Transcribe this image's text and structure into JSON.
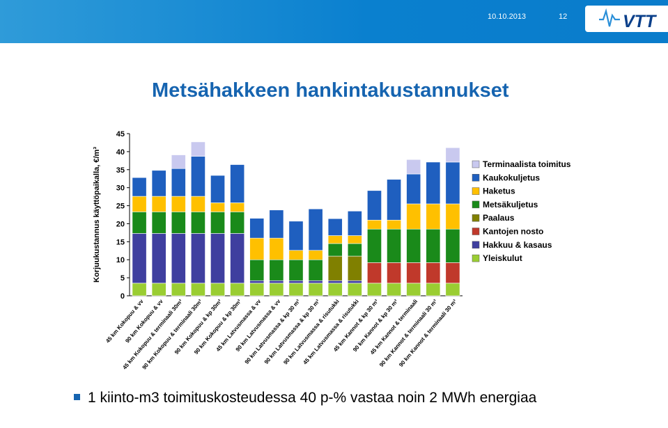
{
  "header": {
    "date": "10.10.2013",
    "page_number": "12",
    "logo_text": "VTT",
    "bg_color": "#0a80cf"
  },
  "title": "Metsähakkeen hankintakustannukset",
  "footnote": {
    "bullet_icon": "square-bullet-icon",
    "text": "1 kiinto-m3 toimituskosteudessa 40 p-% vastaa noin 2 MWh energiaa"
  },
  "chart_data": {
    "type": "bar",
    "stacked": true,
    "ylabel": "Korjuukustannus käyttöpaikalla, €/m³",
    "ylim": [
      0,
      45
    ],
    "yticks": [
      0,
      5,
      10,
      15,
      20,
      25,
      30,
      35,
      40,
      45
    ],
    "grid": false,
    "legend_position": "right",
    "categories": [
      "45 km Kokopuu & vv",
      "90 km Kokopuu & vv",
      "45 km Kokopuu & terminaali 30m³",
      "90 km Kokopuu & terminaali 30m³",
      "90 km Kokopuu & kp 30m³",
      "90 km Kokopuu & kp 30m³",
      "45 km Latvusmassa & vv",
      "90 km Latvusmassa & vv",
      "90 km Latvusmassa & kp 30 m³",
      "90 km Latvusmassa & kp 30 m³",
      "90 km Latvusmassa & risutukki",
      "45 km Latvusmassa & risutukki",
      "45 km Kannot & kp 30 m³",
      "90 km Kannot & kp 30 m³",
      "45 km Kannot & terminaali",
      "90 km Kannot & terminaali 30 m³",
      "90 km Kannot & terminaali 30 m³"
    ],
    "series": [
      {
        "name": "Yleiskulut",
        "color": "#9acd32",
        "values": [
          3.5,
          3.5,
          3.5,
          3.5,
          3.5,
          3.5,
          3.5,
          3.5,
          3.5,
          3.5,
          3.5,
          3.5,
          3.5,
          3.5,
          3.5,
          3.5,
          3.5
        ]
      },
      {
        "name": "Hakkuu & kasaus",
        "color": "#3f3f9f",
        "values": [
          13.8,
          13.8,
          13.8,
          13.8,
          13.8,
          13.8,
          0.7,
          0.7,
          0.7,
          0.7,
          0.7,
          0.7,
          0,
          0,
          0,
          0,
          0
        ]
      },
      {
        "name": "Kantojen nosto",
        "color": "#c0392b",
        "values": [
          0,
          0,
          0,
          0,
          0,
          0,
          0,
          0,
          0,
          0,
          0,
          0,
          5.7,
          5.7,
          5.7,
          5.7,
          5.7
        ]
      },
      {
        "name": "Paalaus",
        "color": "#808000",
        "values": [
          0,
          0,
          0,
          0,
          0,
          0,
          0,
          0,
          0,
          0,
          6.8,
          6.8,
          0,
          0,
          0,
          0,
          0
        ]
      },
      {
        "name": "Metsäkuljetus",
        "color": "#1a8a1a",
        "values": [
          6,
          6,
          6,
          6,
          6,
          6,
          5.8,
          5.8,
          5.8,
          5.8,
          3.5,
          3.5,
          9.3,
          9.3,
          9.3,
          9.3,
          9.3
        ]
      },
      {
        "name": "Haketus",
        "color": "#ffc000",
        "values": [
          4.3,
          4.3,
          4.3,
          4.3,
          2.5,
          2.5,
          6,
          6,
          2.6,
          2.6,
          2.2,
          2.2,
          2.5,
          2.5,
          7,
          7,
          7
        ]
      },
      {
        "name": "Kaukokuljetus",
        "color": "#1f5fbf",
        "values": [
          5.2,
          7.2,
          7.7,
          11.1,
          7.6,
          10.6,
          5.5,
          7.8,
          8.1,
          11.5,
          4.7,
          6.8,
          8.2,
          11.3,
          8.3,
          11.6,
          11.6
        ]
      },
      {
        "name": "Terminaalista toimitus",
        "color": "#c9c9ef",
        "values": [
          0,
          0,
          3.8,
          4,
          0,
          0,
          0,
          0,
          0,
          0,
          0,
          0,
          0,
          0,
          4,
          0,
          4
        ]
      }
    ]
  }
}
